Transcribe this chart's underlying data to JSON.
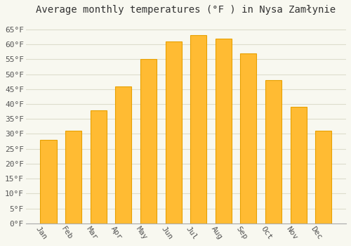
{
  "title": "Average monthly temperatures (°F ) in Nysa Zamłynie",
  "months": [
    "Jan",
    "Feb",
    "Mar",
    "Apr",
    "May",
    "Jun",
    "Jul",
    "Aug",
    "Sep",
    "Oct",
    "Nov",
    "Dec"
  ],
  "values": [
    28,
    31,
    38,
    46,
    55,
    61,
    63,
    62,
    57,
    48,
    39,
    31
  ],
  "bar_color": "#FFBB33",
  "bar_edge_color": "#E8A000",
  "background_color": "#F8F8F0",
  "plot_bg_color": "#F8F8F0",
  "grid_color": "#DDDDCC",
  "ytick_labels": [
    "0°F",
    "5°F",
    "10°F",
    "15°F",
    "20°F",
    "25°F",
    "30°F",
    "35°F",
    "40°F",
    "45°F",
    "50°F",
    "55°F",
    "60°F",
    "65°F"
  ],
  "yticks": [
    0,
    5,
    10,
    15,
    20,
    25,
    30,
    35,
    40,
    45,
    50,
    55,
    60,
    65
  ],
  "ylim": [
    0,
    68
  ],
  "title_fontsize": 10,
  "tick_fontsize": 8,
  "xlabel_rotation": -55
}
